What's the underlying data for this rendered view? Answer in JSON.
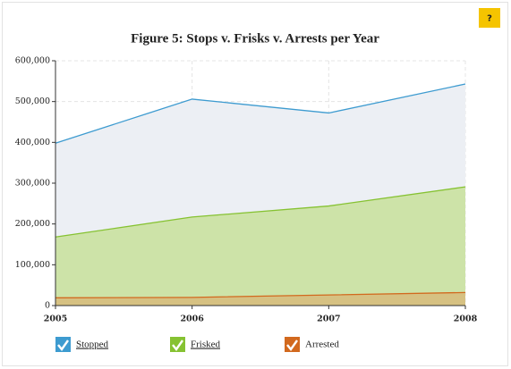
{
  "help_button": "?",
  "chart_data": {
    "type": "area",
    "title": "Figure 5: Stops v. Frisks v. Arrests per Year",
    "x": [
      2005,
      2006,
      2007,
      2008
    ],
    "xlim": [
      2005,
      2008
    ],
    "xticks": [
      2005,
      2006,
      2007,
      2008
    ],
    "ylim": [
      0,
      600000
    ],
    "yticks": [
      0,
      {
        "value": 100000,
        "label": "100,000"
      },
      {
        "value": 200000,
        "label": "200,000"
      },
      {
        "value": 300000,
        "label": "300,000"
      },
      {
        "value": 400000,
        "label": "400,000"
      },
      {
        "value": 500000,
        "label": "500,000"
      },
      {
        "value": 600000,
        "label": "600,000"
      }
    ],
    "grid": true,
    "series": [
      {
        "name": "Stopped",
        "color": "#3d9bd0",
        "fill": "#eceff4",
        "values": [
          398000,
          506000,
          472000,
          543000
        ]
      },
      {
        "name": "Frisked",
        "color": "#86c232",
        "fill": "#cde3a8",
        "values": [
          168000,
          217000,
          244000,
          291000
        ]
      },
      {
        "name": "Arrested",
        "color": "#d2691e",
        "fill": "#d6c182",
        "values": [
          19000,
          20000,
          26000,
          32000
        ]
      }
    ]
  }
}
